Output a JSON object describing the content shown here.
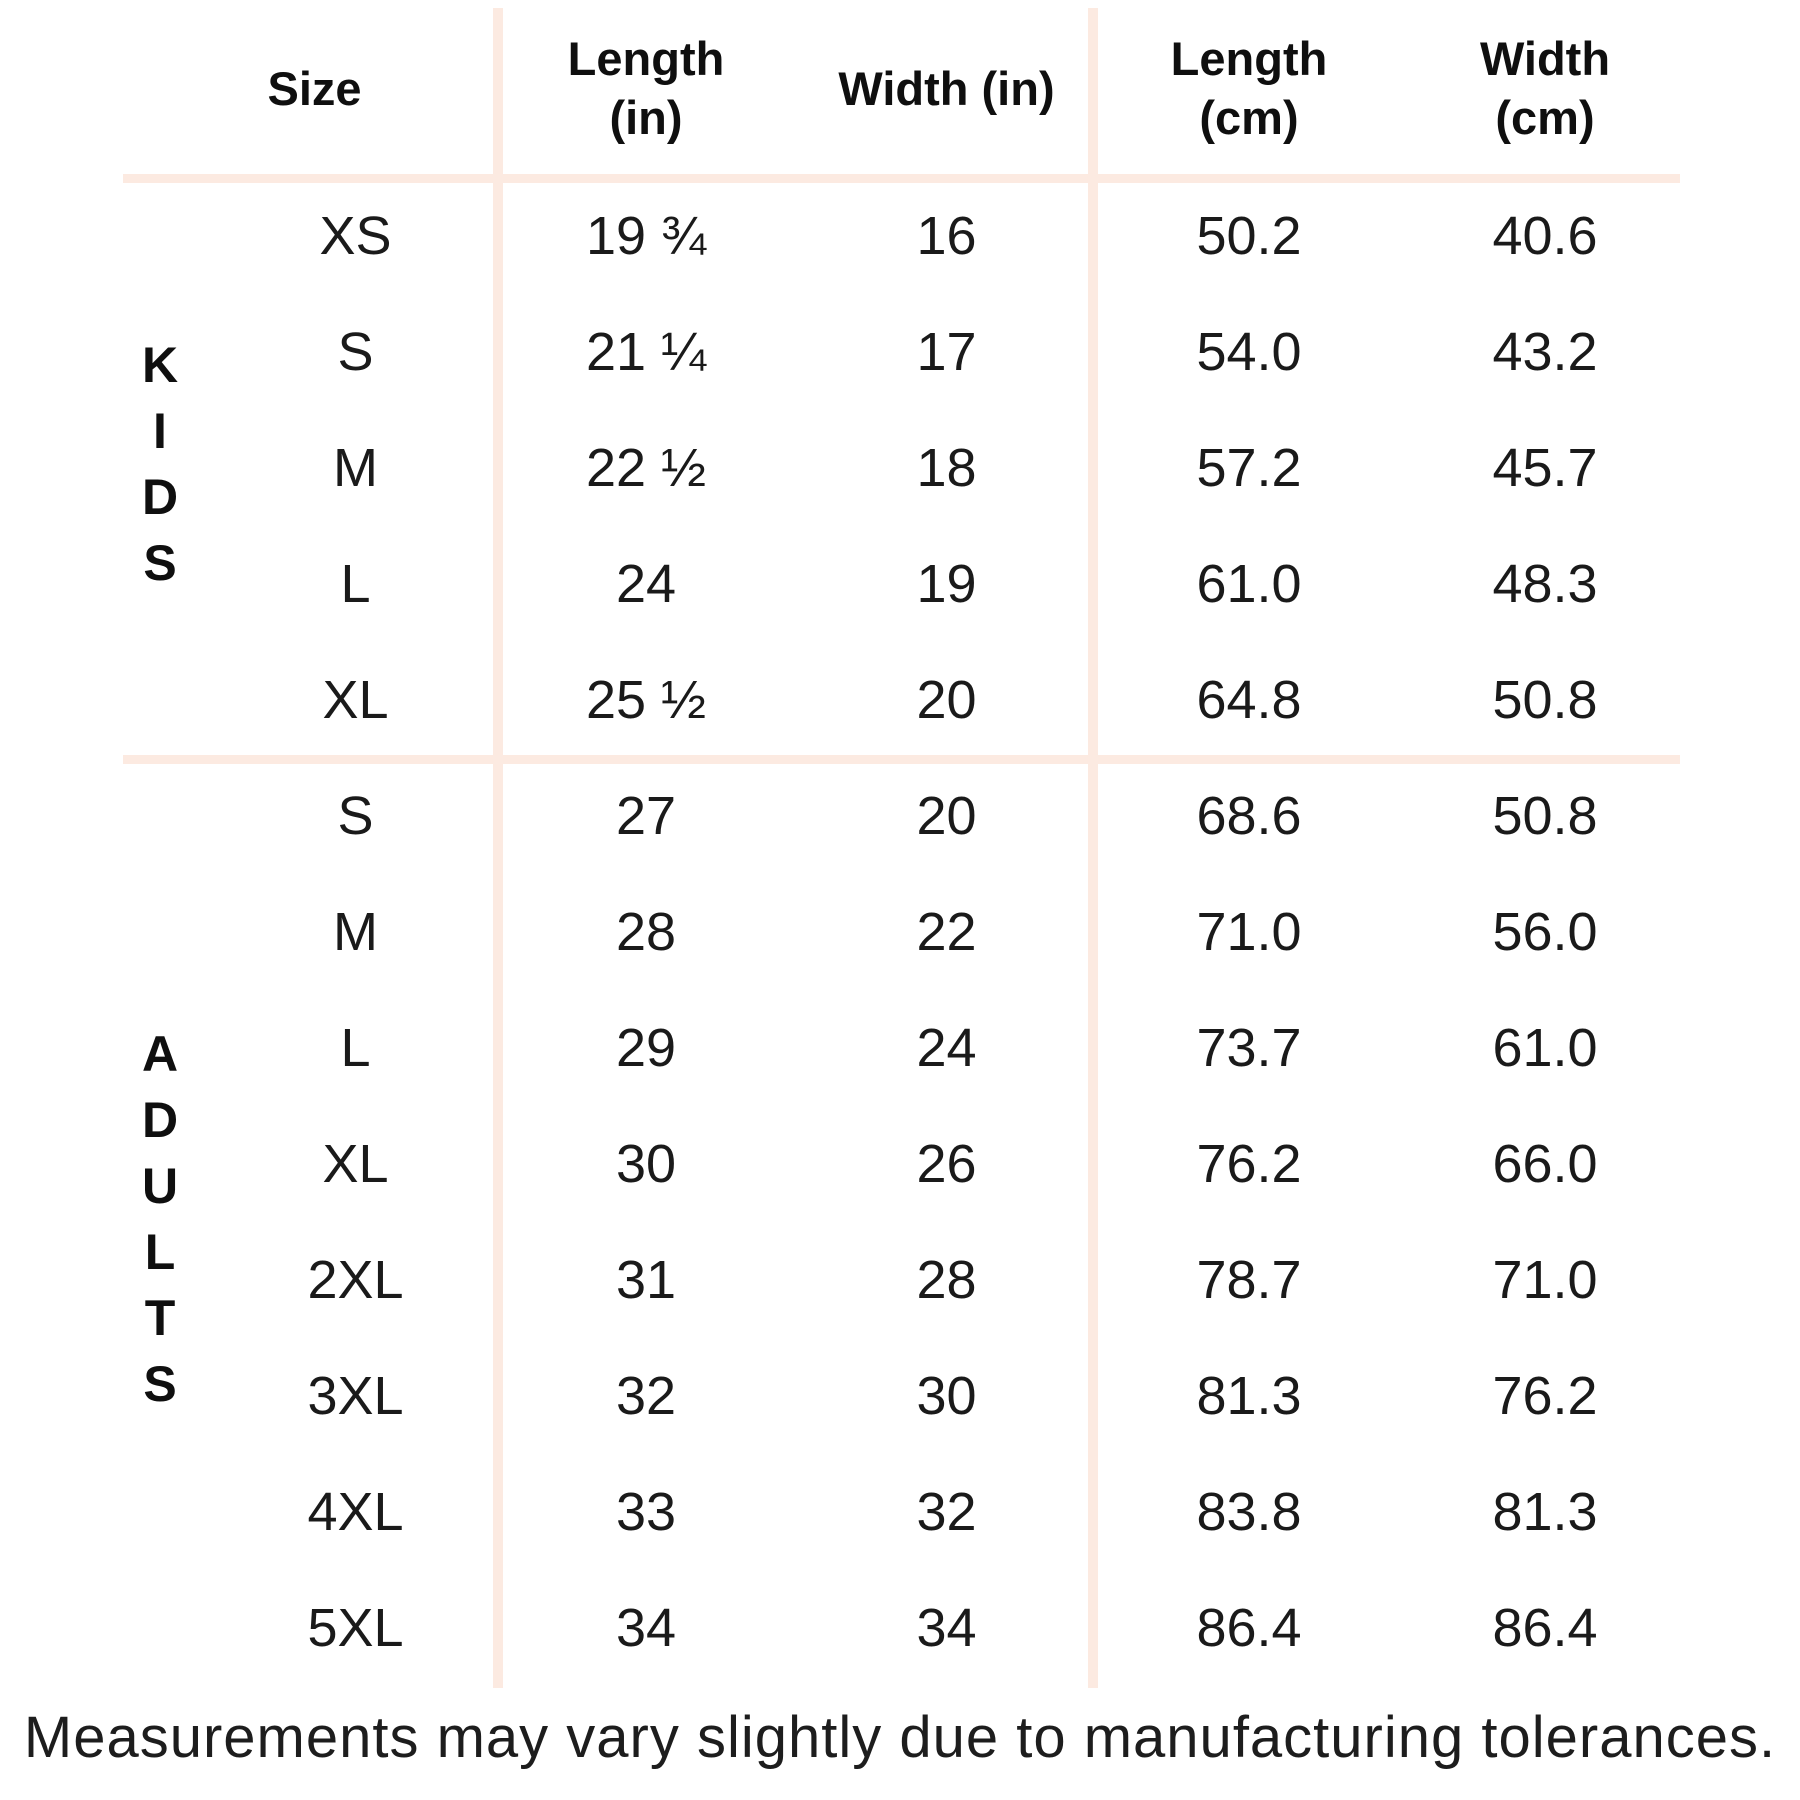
{
  "header": {
    "size": "Size",
    "length_in": "Length\n(in)",
    "width_in": "Width (in)",
    "length_cm": "Length\n(cm)",
    "width_cm": "Width\n(cm)"
  },
  "chart_data": {
    "type": "table",
    "columns": [
      "Size",
      "Length (in)",
      "Width (in)",
      "Length (cm)",
      "Width (cm)"
    ],
    "sections": [
      {
        "group": "KIDS",
        "rows": [
          [
            "XS",
            "19 ¾",
            "16",
            "50.2",
            "40.6"
          ],
          [
            "S",
            "21 ¼",
            "17",
            "54.0",
            "43.2"
          ],
          [
            "M",
            "22 ½",
            "18",
            "57.2",
            "45.7"
          ],
          [
            "L",
            "24",
            "19",
            "61.0",
            "48.3"
          ],
          [
            "XL",
            "25 ½",
            "20",
            "64.8",
            "50.8"
          ]
        ]
      },
      {
        "group": "ADULTS",
        "rows": [
          [
            "S",
            "27",
            "20",
            "68.6",
            "50.8"
          ],
          [
            "M",
            "28",
            "22",
            "71.0",
            "56.0"
          ],
          [
            "L",
            "29",
            "24",
            "73.7",
            "61.0"
          ],
          [
            "XL",
            "30",
            "26",
            "76.2",
            "66.0"
          ],
          [
            "2XL",
            "31",
            "28",
            "78.7",
            "71.0"
          ],
          [
            "3XL",
            "32",
            "30",
            "81.3",
            "76.2"
          ],
          [
            "4XL",
            "33",
            "32",
            "83.8",
            "81.3"
          ],
          [
            "5XL",
            "34",
            "34",
            "86.4",
            "86.4"
          ]
        ]
      }
    ]
  },
  "footer": {
    "note": "Measurements may vary slightly due to manufacturing tolerances."
  },
  "colors": {
    "divider": "#fceae1",
    "text": "#161616",
    "background": "#ffffff"
  }
}
